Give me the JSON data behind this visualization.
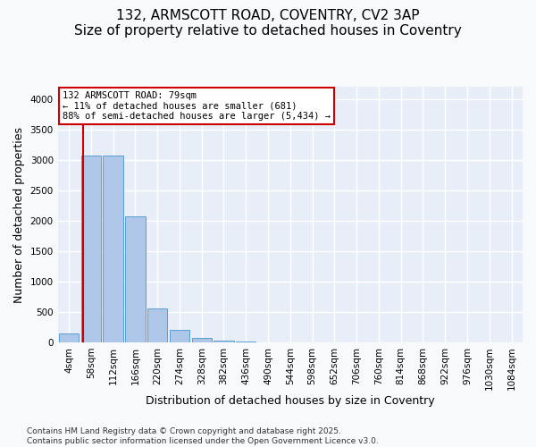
{
  "title_line1": "132, ARMSCOTT ROAD, COVENTRY, CV2 3AP",
  "title_line2": "Size of property relative to detached houses in Coventry",
  "xlabel": "Distribution of detached houses by size in Coventry",
  "ylabel": "Number of detached properties",
  "bar_color": "#aec6e8",
  "bar_edge_color": "#5a9fd4",
  "background_color": "#e8eef8",
  "grid_color": "#ffffff",
  "bin_labels": [
    "4sqm",
    "58sqm",
    "112sqm",
    "166sqm",
    "220sqm",
    "274sqm",
    "328sqm",
    "382sqm",
    "436sqm",
    "490sqm",
    "544sqm",
    "598sqm",
    "652sqm",
    "706sqm",
    "760sqm",
    "814sqm",
    "868sqm",
    "922sqm",
    "976sqm",
    "1030sqm",
    "1084sqm"
  ],
  "bar_values": [
    150,
    3080,
    3080,
    2070,
    560,
    200,
    75,
    30,
    20,
    0,
    0,
    0,
    0,
    0,
    0,
    0,
    0,
    0,
    0,
    0,
    0
  ],
  "ylim": [
    0,
    4200
  ],
  "yticks": [
    0,
    500,
    1000,
    1500,
    2000,
    2500,
    3000,
    3500,
    4000
  ],
  "property_label": "132 ARMSCOTT ROAD: 79sqm",
  "annotation_line2": "← 11% of detached houses are smaller (681)",
  "annotation_line3": "88% of semi-detached houses are larger (5,434) →",
  "vline_color": "#cc0000",
  "annotation_box_edge_color": "#cc0000",
  "footer_line1": "Contains HM Land Registry data © Crown copyright and database right 2025.",
  "footer_line2": "Contains public sector information licensed under the Open Government Licence v3.0.",
  "title_fontsize": 11,
  "axis_label_fontsize": 9,
  "tick_fontsize": 7.5,
  "footer_fontsize": 6.5
}
